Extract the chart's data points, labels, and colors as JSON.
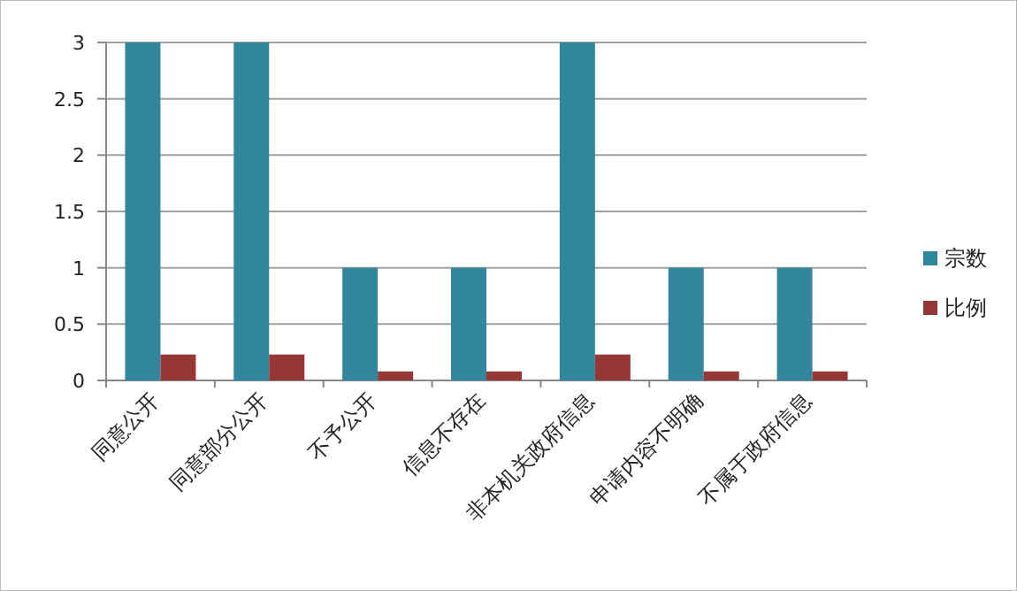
{
  "chart_data": {
    "type": "bar",
    "categories": [
      "同意公开",
      "同意部分公开",
      "不予公开",
      "信息不存在",
      "非本机关政府信息",
      "申请内容不明确",
      "不属于政府信息"
    ],
    "series": [
      {
        "name": "宗数",
        "color": "#31859c",
        "values": [
          3,
          3,
          1,
          1,
          3,
          1,
          1
        ]
      },
      {
        "name": "比例",
        "color": "#953735",
        "values": [
          0.23,
          0.23,
          0.08,
          0.08,
          0.23,
          0.08,
          0.08
        ]
      }
    ],
    "ylim": [
      0,
      3
    ],
    "yticks": [
      0,
      0.5,
      1,
      1.5,
      2,
      2.5,
      3
    ],
    "grid": "y",
    "legend": "right"
  }
}
